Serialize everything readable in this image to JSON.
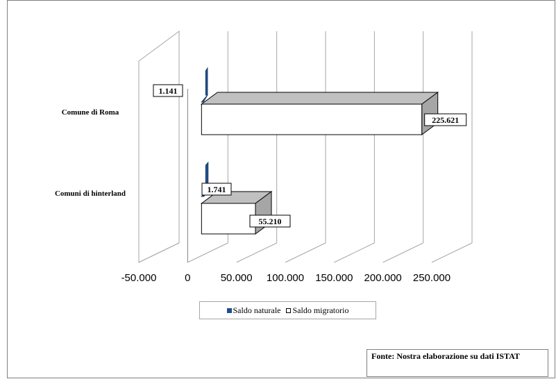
{
  "chart_data": {
    "type": "bar",
    "orientation": "horizontal",
    "style": "3d-clustered",
    "categories": [
      "Comune di Roma",
      "Comuni di hinterland"
    ],
    "series": [
      {
        "name": "Saldo naturale",
        "values": [
          1141,
          1741
        ],
        "labels": [
          "1.141",
          "1.741"
        ],
        "color": "#1f4e8c"
      },
      {
        "name": "Saldo migratorio",
        "values": [
          225621,
          55210
        ],
        "labels": [
          "225.621",
          "55.210"
        ],
        "color": "#ffffff"
      }
    ],
    "xlim": [
      -50000,
      250000
    ],
    "x_ticks": [
      -50000,
      0,
      50000,
      100000,
      150000,
      200000,
      250000
    ],
    "x_tick_labels": [
      "-50.000",
      "0",
      "50.000",
      "100.000",
      "150.000",
      "200.000",
      "250.000"
    ],
    "grid": true,
    "legend_position": "bottom"
  },
  "source_note": "Fonte: Nostra elaborazione su dati ISTAT",
  "colors": {
    "frame": "#7f7f7f",
    "grid": "#a6a6a6",
    "side_face": "#a6a6a6",
    "top_face": "#c0c0c0"
  }
}
